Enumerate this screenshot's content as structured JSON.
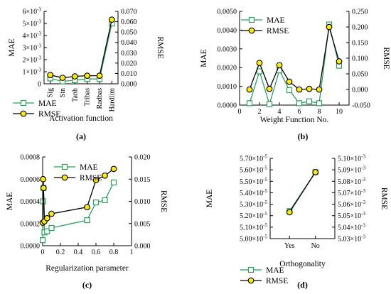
{
  "colors": {
    "mae": "#2e9e5b",
    "rmse_line": "#000000",
    "rmse_marker": "#ffee00",
    "mae_marker_fill": "#ffffff"
  },
  "legend_labels": {
    "mae": "MAE",
    "rmse": "RMSE"
  },
  "chart_data": [
    {
      "panel": "(a)",
      "type": "line",
      "xlabel": "Activation function",
      "ylabel_left": "MAE",
      "ylabel_right": "RMSE",
      "categories": [
        "Sig",
        "Sin",
        "Tanh",
        "Tribas",
        "Radbas",
        "Hardlim"
      ],
      "left_ticks": [
        "0",
        "1×10⁻³",
        "2×10⁻³",
        "3×10⁻³",
        "4×10⁻³",
        "5×10⁻³",
        "6×10⁻³"
      ],
      "right_ticks": [
        "0.000",
        "0.010",
        "0.020",
        "0.030",
        "0.040",
        "0.050",
        "0.060",
        "0.070"
      ],
      "ylim_left": [
        0,
        0.006
      ],
      "ylim_right": [
        0,
        0.07
      ],
      "series": [
        {
          "name": "MAE",
          "axis": "left",
          "values": [
            0.00045,
            0.0002,
            0.0003,
            0.0004,
            0.0004,
            0.005
          ]
        },
        {
          "name": "RMSE",
          "axis": "right",
          "values": [
            0.0085,
            0.0058,
            0.0072,
            0.0078,
            0.0078,
            0.062
          ]
        }
      ],
      "legend": "bottom-left"
    },
    {
      "panel": "(b)",
      "type": "line",
      "xlabel": "Weight Function No.",
      "ylabel_left": "MAE",
      "ylabel_right": "RMSE",
      "x": [
        1,
        2,
        3,
        4,
        5,
        6,
        7,
        8,
        9,
        10
      ],
      "x_ticks": [
        "0",
        "2",
        "4",
        "6",
        "8",
        "10"
      ],
      "left_ticks": [
        "0.0000",
        "0.0010",
        "0.0020",
        "0.0030",
        "0.0040",
        "0.0050"
      ],
      "right_ticks": [
        "-0.050",
        "0.000",
        "0.050",
        "0.100",
        "0.150",
        "0.200",
        "0.250"
      ],
      "xlim": [
        0,
        11
      ],
      "ylim_left": [
        0,
        0.005
      ],
      "ylim_right": [
        -0.05,
        0.25
      ],
      "series": [
        {
          "name": "MAE",
          "axis": "left",
          "values": [
            0.0001,
            0.0018,
            5e-05,
            0.00185,
            0.0008,
            0.0001,
            0.0002,
            0.0001,
            0.0043,
            0.0021
          ]
        },
        {
          "name": "RMSE",
          "axis": "right",
          "values": [
            0.0,
            0.085,
            0.002,
            0.078,
            0.025,
            0.0,
            0.002,
            0.0,
            0.2,
            0.09
          ]
        }
      ],
      "legend": "top-left"
    },
    {
      "panel": "(c)",
      "type": "line",
      "xlabel": "Regularization parameter",
      "ylabel_left": "MAE",
      "ylabel_right": "RMSE",
      "x": [
        0.001,
        0.005,
        0.01,
        0.02,
        0.05,
        0.1,
        0.5,
        0.6,
        0.7,
        0.8
      ],
      "x_ticks": [
        "0",
        "0.2",
        "0.4",
        "0.6",
        "0.8",
        "1"
      ],
      "left_ticks": [
        "0.0000",
        "0.0002",
        "0.0004",
        "0.0006",
        "0.0008"
      ],
      "right_ticks": [
        "0.000",
        "0.005",
        "0.010",
        "0.015",
        "0.020"
      ],
      "xlim": [
        0,
        1
      ],
      "ylim_left": [
        0,
        0.0008
      ],
      "ylim_right": [
        0,
        0.02
      ],
      "series": [
        {
          "name": "MAE",
          "axis": "left",
          "values": [
            5e-05,
            0.0004,
            0.00052,
            0.00012,
            0.00013,
            0.00016,
            0.00023,
            0.00039,
            0.00041,
            0.00057
          ]
        },
        {
          "name": "RMSE",
          "axis": "right",
          "values": [
            0.0052,
            0.015,
            0.013,
            0.0055,
            0.0062,
            0.0072,
            0.0087,
            0.0148,
            0.0158,
            0.0173
          ]
        }
      ],
      "legend": "top-left"
    },
    {
      "panel": "(d)",
      "type": "line",
      "xlabel": "Orthogonality",
      "ylabel_left": "MAE",
      "ylabel_right": "RMSE",
      "categories": [
        "Yes",
        "No"
      ],
      "left_ticks": [
        "5.00×10⁻⁵",
        "5.10×10⁻⁵",
        "5.20×10⁻⁵",
        "5.30×10⁻⁵",
        "5.40×10⁻⁵",
        "5.50×10⁻⁵",
        "5.60×10⁻⁵",
        "5.70×10⁻⁵"
      ],
      "right_ticks": [
        "5.03×10⁻³",
        "5.04×10⁻³",
        "5.05×10⁻³",
        "5.06×10⁻³",
        "5.07×10⁻³",
        "5.08×10⁻³",
        "5.09×10⁻³",
        "5.10×10⁻³"
      ],
      "ylim_left": [
        5e-05,
        5.7e-05
      ],
      "ylim_right": [
        0.00503,
        0.0051
      ],
      "series": [
        {
          "name": "MAE",
          "axis": "left",
          "values": [
            5.24e-05,
            5.58e-05
          ]
        },
        {
          "name": "RMSE",
          "axis": "right",
          "values": [
            0.005053,
            0.005088
          ]
        }
      ],
      "legend": "bottom-left"
    }
  ]
}
